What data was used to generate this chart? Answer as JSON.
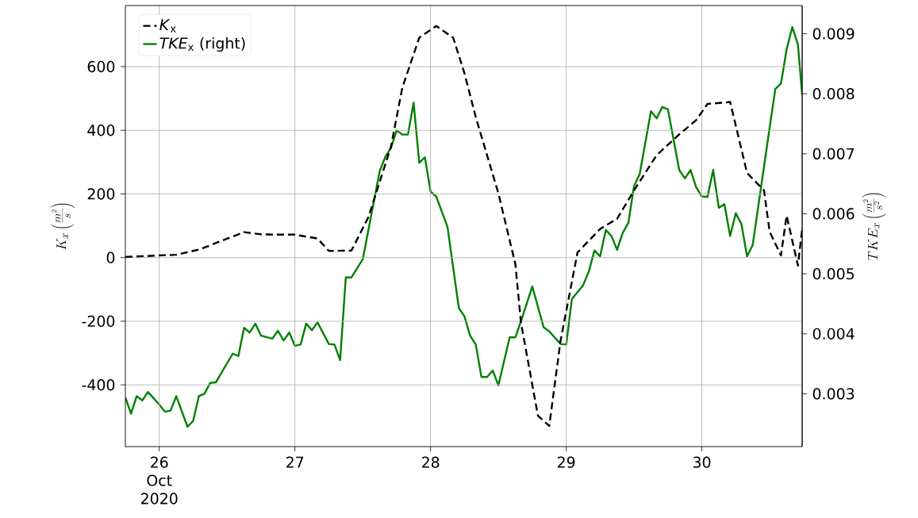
{
  "chart_data": {
    "type": "line",
    "ylabel": "K_x\\left(\\frac{m^2}{s}\\right)",
    "y2label": "TKE_x\\left(\\frac{m^2}{s^2}\\right)",
    "xlim": [
      "2020-10-25T18:00",
      "2020-10-30T17:45"
    ],
    "xticks": [
      {
        "value": "2020-10-26",
        "label": "26 Oct 2020"
      },
      {
        "value": "2020-10-27",
        "label": "27"
      },
      {
        "value": "2020-10-28",
        "label": "28"
      },
      {
        "value": "2020-10-29",
        "label": "29"
      },
      {
        "value": "2020-10-30",
        "label": "30"
      }
    ],
    "ylim": [
      -594,
      792
    ],
    "yticks": [
      -400,
      -200,
      0,
      200,
      400,
      600
    ],
    "y2lim": [
      0.00212,
      0.00947
    ],
    "y2ticks": [
      0.003,
      0.004,
      0.005,
      0.006,
      0.007,
      0.008,
      0.009
    ],
    "grid": true,
    "legend": "top left",
    "series": [
      {
        "name": "*K*$_{x}$",
        "color": "#000000",
        "line_style": "dashed",
        "x": [
          "2020-10-25T18:00",
          "2020-10-26T03:00",
          "2020-10-26T07:00",
          "2020-10-26T15:00",
          "2020-10-26T18:00",
          "2020-10-26T21:00",
          "2020-10-27T00:00",
          "2020-10-27T04:00",
          "2020-10-27T06:00",
          "2020-10-27T10:00",
          "2020-10-27T13:00",
          "2020-10-27T17:00",
          "2020-10-27T19:00",
          "2020-10-27T22:00",
          "2020-10-28T01:00",
          "2020-10-28T04:00",
          "2020-10-28T06:00",
          "2020-10-28T08:00",
          "2020-10-28T12:00",
          "2020-10-28T15:00",
          "2020-10-28T16:00",
          "2020-10-28T19:00",
          "2020-10-28T21:00",
          "2020-10-28T23:00",
          "2020-10-29T02:00",
          "2020-10-29T06:00",
          "2020-10-29T09:00",
          "2020-10-29T12:00",
          "2020-10-29T16:00",
          "2020-10-29T20:00",
          "2020-10-29T23:00",
          "2020-10-30T01:00",
          "2020-10-30T04:00",
          "2020-10-30T05:00",
          "2020-10-30T08:00",
          "2020-10-30T11:00",
          "2020-10-30T12:00",
          "2020-10-30T14:00",
          "2020-10-30T15:00",
          "2020-10-30T17:00",
          "2020-10-30T17:45"
        ],
        "values": [
          2,
          9,
          25,
          80,
          73,
          72,
          72,
          60,
          21,
          22,
          127,
          349,
          534,
          691,
          728,
          691,
          579,
          441,
          202,
          -20,
          -205,
          -497,
          -529,
          -261,
          16,
          90,
          122,
          211,
          322,
          387,
          432,
          483,
          487,
          489,
          266,
          211,
          81,
          7,
          132,
          -25,
          90
        ]
      },
      {
        "name": "*TKE*$_{x}$ (right)",
        "color": "#008000",
        "line_style": "solid",
        "axis": "y2",
        "x": [
          "2020-10-25T18:00",
          "2020-10-25T19:00",
          "2020-10-25T20:00",
          "2020-10-25T21:00",
          "2020-10-25T22:00",
          "2020-10-26T00:00",
          "2020-10-26T01:00",
          "2020-10-26T02:00",
          "2020-10-26T03:00",
          "2020-10-26T05:00",
          "2020-10-26T06:00",
          "2020-10-26T07:00",
          "2020-10-26T08:00",
          "2020-10-26T09:00",
          "2020-10-26T10:00",
          "2020-10-26T13:00",
          "2020-10-26T14:00",
          "2020-10-26T15:00",
          "2020-10-26T16:00",
          "2020-10-26T17:00",
          "2020-10-26T18:00",
          "2020-10-26T20:00",
          "2020-10-26T21:00",
          "2020-10-26T22:00",
          "2020-10-26T23:00",
          "2020-10-27T00:00",
          "2020-10-27T01:00",
          "2020-10-27T02:00",
          "2020-10-27T03:00",
          "2020-10-27T04:00",
          "2020-10-27T06:00",
          "2020-10-27T07:00",
          "2020-10-27T08:00",
          "2020-10-27T09:00",
          "2020-10-27T10:00",
          "2020-10-27T12:00",
          "2020-10-27T15:00",
          "2020-10-27T16:00",
          "2020-10-27T17:00",
          "2020-10-27T18:00",
          "2020-10-27T19:00",
          "2020-10-27T20:00",
          "2020-10-27T21:00",
          "2020-10-27T22:00",
          "2020-10-27T23:00",
          "2020-10-28T00:00",
          "2020-10-28T01:00",
          "2020-10-28T03:00",
          "2020-10-28T05:00",
          "2020-10-28T06:00",
          "2020-10-28T07:00",
          "2020-10-28T08:00",
          "2020-10-28T09:00",
          "2020-10-28T10:00",
          "2020-10-28T11:00",
          "2020-10-28T12:00",
          "2020-10-28T14:00",
          "2020-10-28T15:00",
          "2020-10-28T16:00",
          "2020-10-28T18:00",
          "2020-10-28T20:00",
          "2020-10-28T21:00",
          "2020-10-28T23:00",
          "2020-10-29T00:00",
          "2020-10-29T01:00",
          "2020-10-29T03:00",
          "2020-10-29T04:00",
          "2020-10-29T05:00",
          "2020-10-29T06:00",
          "2020-10-29T07:00",
          "2020-10-29T08:00",
          "2020-10-29T09:00",
          "2020-10-29T10:00",
          "2020-10-29T11:00",
          "2020-10-29T12:00",
          "2020-10-29T13:00",
          "2020-10-29T15:00",
          "2020-10-29T16:00",
          "2020-10-29T17:00",
          "2020-10-29T18:00",
          "2020-10-29T20:00",
          "2020-10-29T21:00",
          "2020-10-29T22:00",
          "2020-10-29T23:00",
          "2020-10-30T00:00",
          "2020-10-30T01:00",
          "2020-10-30T02:00",
          "2020-10-30T03:00",
          "2020-10-30T04:00",
          "2020-10-30T05:00",
          "2020-10-30T06:00",
          "2020-10-30T07:00",
          "2020-10-30T08:00",
          "2020-10-30T09:00",
          "2020-10-30T12:00",
          "2020-10-30T13:00",
          "2020-10-30T14:00",
          "2020-10-30T15:00",
          "2020-10-30T16:00",
          "2020-10-30T17:00",
          "2020-10-30T17:45"
        ],
        "values": [
          0.00294,
          0.00267,
          0.00296,
          0.00289,
          0.00303,
          0.00282,
          0.0027,
          0.00272,
          0.00296,
          0.00245,
          0.00255,
          0.00296,
          0.003,
          0.00318,
          0.00319,
          0.00367,
          0.00363,
          0.0041,
          0.00402,
          0.00417,
          0.00397,
          0.00392,
          0.00405,
          0.00389,
          0.00402,
          0.0038,
          0.00382,
          0.00417,
          0.00406,
          0.00419,
          0.00383,
          0.00382,
          0.00356,
          0.00494,
          0.00494,
          0.00524,
          0.00671,
          0.00695,
          0.0071,
          0.00739,
          0.00732,
          0.00732,
          0.00785,
          0.00685,
          0.00694,
          0.00637,
          0.00629,
          0.00578,
          0.00443,
          0.00429,
          0.00397,
          0.00382,
          0.00328,
          0.00328,
          0.00339,
          0.00314,
          0.00394,
          0.00394,
          0.00421,
          0.00479,
          0.00411,
          0.00404,
          0.00383,
          0.00382,
          0.00458,
          0.00481,
          0.00504,
          0.00539,
          0.00529,
          0.00573,
          0.00563,
          0.0054,
          0.00568,
          0.00585,
          0.00646,
          0.00666,
          0.00771,
          0.00759,
          0.00778,
          0.00774,
          0.00673,
          0.00659,
          0.00673,
          0.00644,
          0.00629,
          0.00628,
          0.00673,
          0.0061,
          0.00616,
          0.00563,
          0.00601,
          0.00583,
          0.00529,
          0.00548,
          0.00744,
          0.00808,
          0.00817,
          0.00874,
          0.00911,
          0.00882,
          0.00798
        ]
      }
    ]
  }
}
